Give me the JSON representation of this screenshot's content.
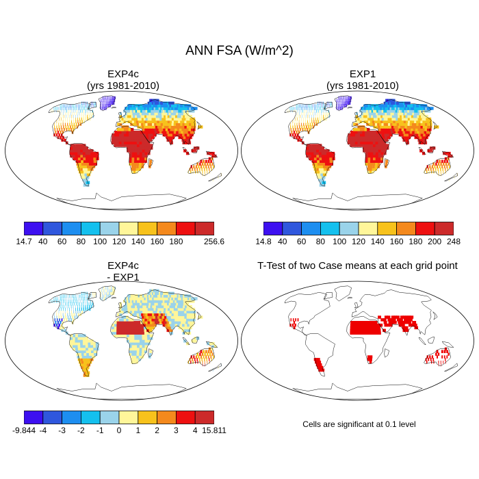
{
  "title": "ANN FSA (W/m^2)",
  "panels": [
    {
      "id": "exp4c",
      "title_line1": "EXP4c",
      "title_line2": "(yrs 1981-2010)"
    },
    {
      "id": "exp1",
      "title_line1": "EXP1",
      "title_line2": "(yrs 1981-2010)"
    },
    {
      "id": "diff",
      "title_line1": "EXP4c",
      "title_line2": " - EXP1"
    },
    {
      "id": "ttest",
      "title_line1": "T-Test of two Case means at each grid point",
      "title_line2": ""
    }
  ],
  "colorbars": {
    "exp4c": {
      "colors": [
        "#3d10f0",
        "#2f57dd",
        "#1d8ef0",
        "#14c0ee",
        "#9ad3ea",
        "#fff69a",
        "#f7c21c",
        "#f4891d",
        "#ee1010",
        "#cc2a2a"
      ],
      "labels": [
        "14.7",
        "40",
        "60",
        "80",
        "100",
        "120",
        "140",
        "160",
        "180",
        "256.6"
      ]
    },
    "exp1": {
      "colors": [
        "#3d10f0",
        "#2f57dd",
        "#1d8ef0",
        "#14c0ee",
        "#9ad3ea",
        "#fff69a",
        "#f7c21c",
        "#f4891d",
        "#ee1010",
        "#cc2a2a"
      ],
      "labels": [
        "14.8",
        "40",
        "60",
        "80",
        "100",
        "120",
        "140",
        "160",
        "180",
        "200",
        "248"
      ]
    },
    "diff": {
      "colors": [
        "#3d10f0",
        "#2f57dd",
        "#1d8ef0",
        "#14c0ee",
        "#9ad3ea",
        "#fff69a",
        "#f7c21c",
        "#f4891d",
        "#ee1010",
        "#cc2a2a"
      ],
      "labels": [
        "-9.844",
        "-4",
        "-3",
        "-2",
        "-1",
        "0",
        "1",
        "2",
        "3",
        "4",
        "15.811"
      ]
    }
  },
  "significance_note": "Cells are significant at 0.1 level",
  "colors": {
    "significant": "#ee0000",
    "outline": "#000000"
  }
}
